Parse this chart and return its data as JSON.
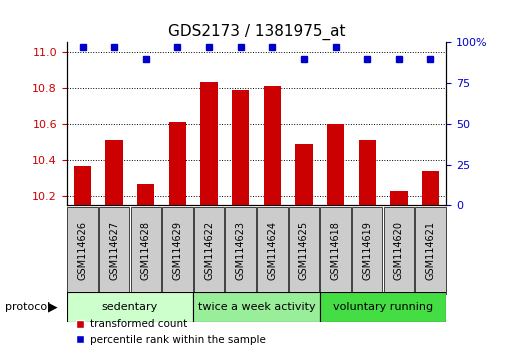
{
  "title": "GDS2173 / 1381975_at",
  "samples": [
    "GSM114626",
    "GSM114627",
    "GSM114628",
    "GSM114629",
    "GSM114622",
    "GSM114623",
    "GSM114624",
    "GSM114625",
    "GSM114618",
    "GSM114619",
    "GSM114620",
    "GSM114621"
  ],
  "transformed_count": [
    10.37,
    10.51,
    10.27,
    10.61,
    10.83,
    10.79,
    10.81,
    10.49,
    10.6,
    10.51,
    10.23,
    10.34
  ],
  "percentile_rank": [
    97,
    97,
    90,
    97,
    97,
    97,
    97,
    90,
    97,
    90,
    90,
    90
  ],
  "ylim_left": [
    10.15,
    11.05
  ],
  "ylim_right": [
    0,
    100
  ],
  "yticks_left": [
    10.2,
    10.4,
    10.6,
    10.8,
    11.0
  ],
  "yticks_right": [
    0,
    25,
    50,
    75,
    100
  ],
  "ytick_right_labels": [
    "0",
    "25",
    "50",
    "75",
    "100%"
  ],
  "groups": [
    {
      "label": "sedentary",
      "start": 0,
      "end": 4,
      "color": "#ccffcc"
    },
    {
      "label": "twice a week activity",
      "start": 4,
      "end": 8,
      "color": "#99ee99"
    },
    {
      "label": "voluntary running",
      "start": 8,
      "end": 12,
      "color": "#44dd44"
    }
  ],
  "bar_color": "#cc0000",
  "dot_color": "#0000cc",
  "bar_bottom": 10.15,
  "title_fontsize": 11,
  "tick_color_left": "#cc0000",
  "tick_color_right": "#0000cc",
  "label_bg_color": "#cccccc",
  "legend_labels": [
    "transformed count",
    "percentile rank within the sample"
  ]
}
